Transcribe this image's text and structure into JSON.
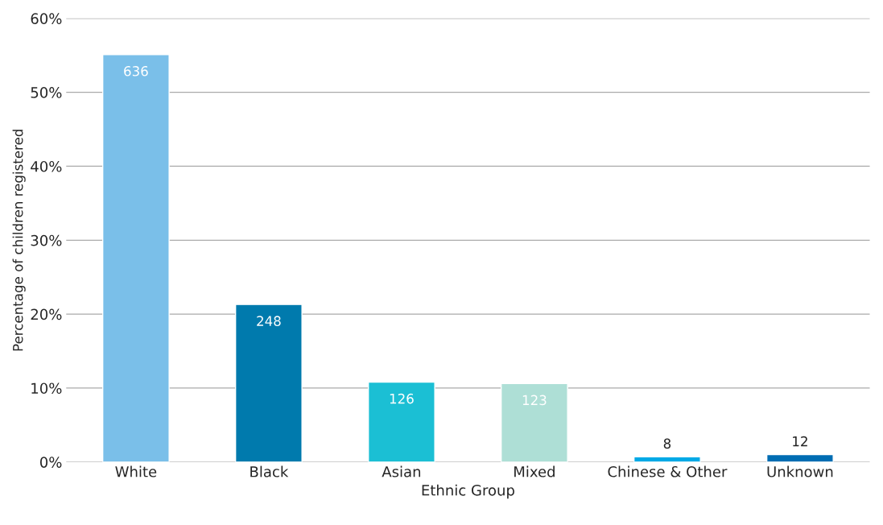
{
  "chart_data": {
    "type": "bar",
    "xlabel": "Ethnic Group",
    "ylabel": "Percentage of children registered",
    "categories": [
      "White",
      "Black",
      "Asian",
      "Mixed",
      "Chinese & Other",
      "Unknown"
    ],
    "values": [
      55.1,
      21.3,
      10.8,
      10.6,
      0.7,
      1.0
    ],
    "colors": [
      "#7abfe9",
      "#007aad",
      "#1bbfd4",
      "#aedfd6",
      "#00a9e6",
      "#006db3"
    ],
    "annotations": [
      {
        "text": "636",
        "x": "White",
        "y": 55.1
      },
      {
        "text": "248",
        "x": "Black",
        "y": 21.3
      },
      {
        "text": "126",
        "x": "Asian",
        "y": 10.8
      },
      {
        "text": "123",
        "x": "Mixed",
        "y": 10.6
      },
      {
        "text": "8",
        "x": "Chinese & Other",
        "y": 0.7
      },
      {
        "text": "12",
        "x": "Unknown",
        "y": 1.0
      }
    ],
    "ylim": [
      0,
      60
    ],
    "yticks": [
      {
        "value": 0,
        "label": "0%"
      },
      {
        "value": 10,
        "label": "10%"
      },
      {
        "value": 20,
        "label": "20%"
      },
      {
        "value": 30,
        "label": "30%"
      },
      {
        "value": 40,
        "label": "40%"
      },
      {
        "value": 50,
        "label": "50%"
      },
      {
        "value": 60,
        "label": "60%"
      }
    ],
    "grid": "y",
    "legend": false
  }
}
